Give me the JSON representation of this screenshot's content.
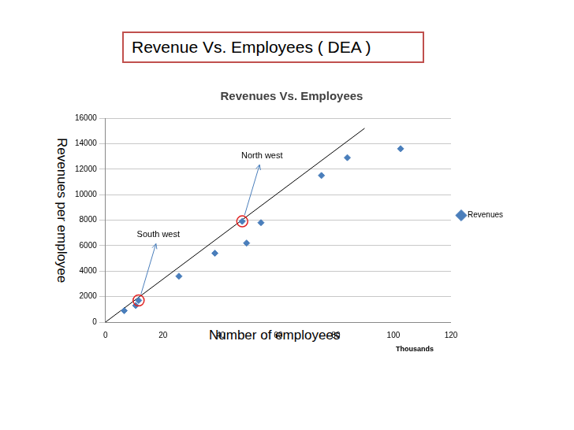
{
  "chart_data": {
    "type": "scatter",
    "page_title": "Revenue Vs. Employees ( DEA )",
    "title": "Revenues Vs. Employees",
    "x_label": "Number of employees",
    "y_label": "Revenues per employee",
    "x_unit_label": "Thousands",
    "series": [
      {
        "name": "Revenues",
        "color": "#4a7ebb",
        "marker": "diamond",
        "x": [
          6.5,
          10.5,
          11.5,
          25.5,
          38,
          47.5,
          49,
          54,
          75,
          84,
          102.5
        ],
        "values": [
          900,
          1300,
          1700,
          3600,
          5400,
          7900,
          6200,
          7800,
          11500,
          12900,
          13600
        ]
      }
    ],
    "line": {
      "x": [
        0,
        90
      ],
      "values": [
        0,
        15200
      ],
      "color": "#000000"
    },
    "annotations": [
      {
        "text": "South west",
        "x": 11.5,
        "y": 1700
      },
      {
        "text": "North west",
        "x": 47.5,
        "y": 7900
      }
    ],
    "xlim": [
      0,
      120
    ],
    "xticks": [
      0,
      20,
      40,
      60,
      80,
      100,
      120
    ],
    "ylim": [
      0,
      16000
    ],
    "yticks": [
      0,
      2000,
      4000,
      6000,
      8000,
      10000,
      12000,
      14000,
      16000
    ],
    "grid": "y",
    "legend": "right"
  }
}
